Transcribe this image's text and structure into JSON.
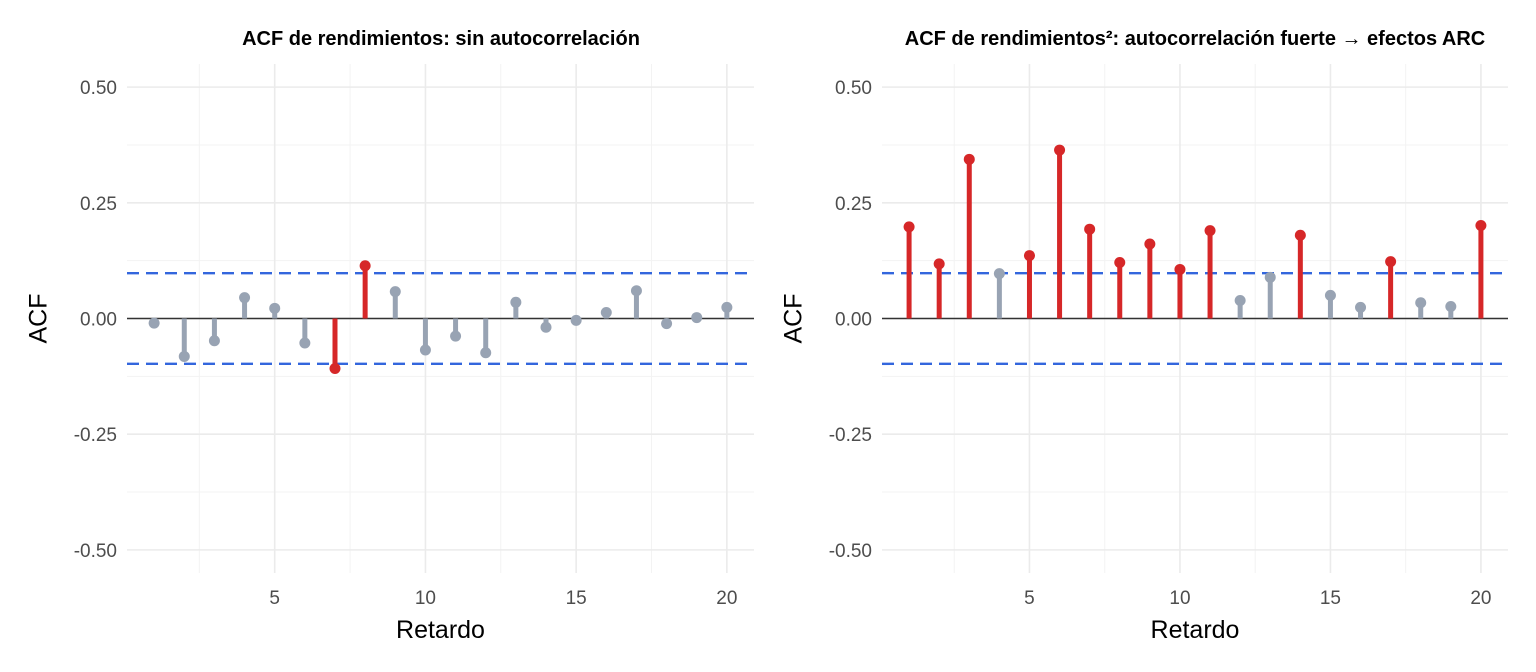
{
  "chart_data": [
    {
      "type": "lollipop",
      "title": "ACF de rendimientos: sin autocorrelación",
      "xlabel": "Retardo",
      "ylabel": "ACF",
      "x": [
        1,
        2,
        3,
        4,
        5,
        6,
        7,
        8,
        9,
        10,
        11,
        12,
        13,
        14,
        15,
        16,
        17,
        18,
        19,
        20
      ],
      "values": [
        -0.01,
        -0.082,
        -0.048,
        0.045,
        0.022,
        -0.053,
        -0.108,
        0.114,
        0.058,
        -0.068,
        -0.038,
        -0.074,
        0.035,
        -0.019,
        -0.004,
        0.013,
        0.06,
        -0.011,
        0.002,
        0.024
      ],
      "significant": [
        false,
        false,
        false,
        false,
        false,
        false,
        true,
        true,
        false,
        false,
        false,
        false,
        false,
        false,
        false,
        false,
        false,
        false,
        false,
        false
      ],
      "confidence_bound": 0.098,
      "ylim": [
        -0.55,
        0.55
      ],
      "xlim": [
        0.1,
        20.9
      ],
      "yticks": [
        "-0.50",
        "-0.25",
        "0.00",
        "0.25",
        "0.50"
      ],
      "xticks": [
        "5",
        "10",
        "15",
        "20"
      ],
      "grid": true
    },
    {
      "type": "lollipop",
      "title": "ACF de rendimientos²: autocorrelación fuerte → efectos ARC",
      "xlabel": "Retardo",
      "ylabel": "ACF",
      "x": [
        1,
        2,
        3,
        4,
        5,
        6,
        7,
        8,
        9,
        10,
        11,
        12,
        13,
        14,
        15,
        16,
        17,
        18,
        19,
        20
      ],
      "values": [
        0.198,
        0.118,
        0.344,
        0.097,
        0.136,
        0.364,
        0.193,
        0.121,
        0.161,
        0.106,
        0.19,
        0.039,
        0.089,
        0.18,
        0.05,
        0.024,
        0.123,
        0.034,
        0.026,
        0.201
      ],
      "significant": [
        true,
        true,
        true,
        false,
        true,
        true,
        true,
        true,
        true,
        true,
        true,
        false,
        false,
        true,
        false,
        false,
        true,
        false,
        false,
        true
      ],
      "confidence_bound": 0.098,
      "ylim": [
        -0.55,
        0.55
      ],
      "xlim": [
        0.1,
        20.9
      ],
      "yticks": [
        "-0.50",
        "-0.25",
        "0.00",
        "0.25",
        "0.50"
      ],
      "xticks": [
        "5",
        "10",
        "15",
        "20"
      ],
      "grid": true
    }
  ],
  "colors": {
    "significant": "#d62728",
    "not_significant": "#98a3b3",
    "confidence_line": "#3366dd",
    "zero_line": "#333333",
    "grid_major": "#ebebeb",
    "grid_minor": "#f3f3f3"
  }
}
